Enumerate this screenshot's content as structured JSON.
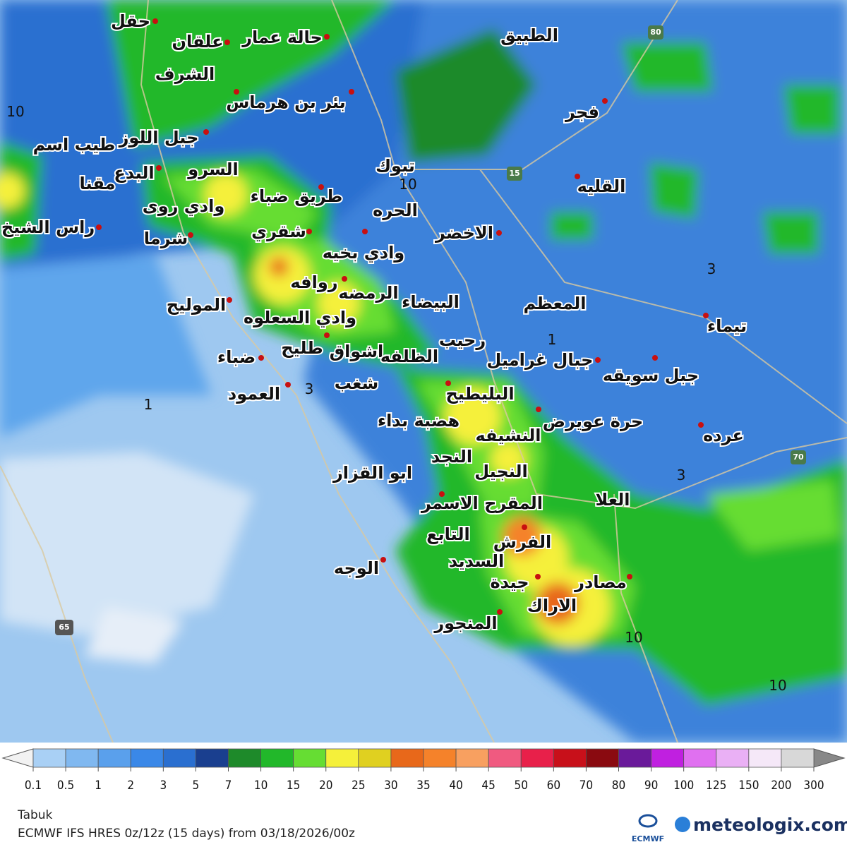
{
  "places": [
    "حقل",
    "علقان",
    "حالة عمار",
    "الطبيق",
    "الشرف",
    "بئر بن هرماس",
    "فجر",
    "جبل اللوز",
    "طيب اسم",
    "البدع",
    "مقنا",
    "السرو",
    "تبوك",
    "القليه",
    "طريق ضباء",
    "وادي روى",
    "الحره",
    "راس الشيخ",
    "شرما",
    "شقري",
    "الاخضر",
    "وادي بخيه",
    "روافه",
    "الرمضه",
    "البيضاء",
    "المعظم",
    "الموليح",
    "وادي السعلوه",
    "تيماء",
    "رحيب",
    "طليح",
    "اشواق",
    "الظلفه",
    "جبال غراميل",
    "جبل سويقه",
    "ضباء",
    "شغب",
    "العمود",
    "البليطيح",
    "هضبة بداء",
    "حرة عويرض",
    "عرده",
    "النشيفه",
    "النجد",
    "ابو القزاز",
    "النجيل",
    "العلا",
    "المقرح الاسمر",
    "التابع",
    "الفرش",
    "السديد",
    "الوجه",
    "مصادر",
    "جيدة",
    "الاراك",
    "المنجور"
  ],
  "road_numbers": [
    "80",
    "15",
    "70",
    "65"
  ],
  "contour_labels": [
    "10",
    "10",
    "3",
    "1",
    "3",
    "1",
    "3",
    "10",
    "10"
  ],
  "legend": {
    "ticks": [
      0.1,
      0.5,
      1,
      2,
      3,
      5,
      7,
      10,
      15,
      20,
      25,
      30,
      35,
      40,
      45,
      50,
      60,
      70,
      80,
      90,
      100,
      125,
      150,
      200,
      300
    ],
    "colors": [
      "#a9d0f5",
      "#80b8f0",
      "#5aa0ec",
      "#3a88e8",
      "#2a6fd0",
      "#1a3f8f",
      "#1e8a2a",
      "#22b82a",
      "#66dd33",
      "#f5f03a",
      "#e0d020",
      "#e8681a",
      "#f5822a",
      "#f8a060",
      "#f05a80",
      "#e8204a",
      "#c8101a",
      "#8a0a10",
      "#6a1a9a",
      "#c020e0",
      "#e070f0",
      "#eab0f5",
      "#f5e8f8",
      "#d8d8d8"
    ]
  },
  "footer": {
    "region": "Tabuk",
    "model": "ECMWF IFS HRES 0z/12z (15 days) from 03/18/2026/00z",
    "logo": "ECMWF",
    "brand": "meteologix.com"
  }
}
